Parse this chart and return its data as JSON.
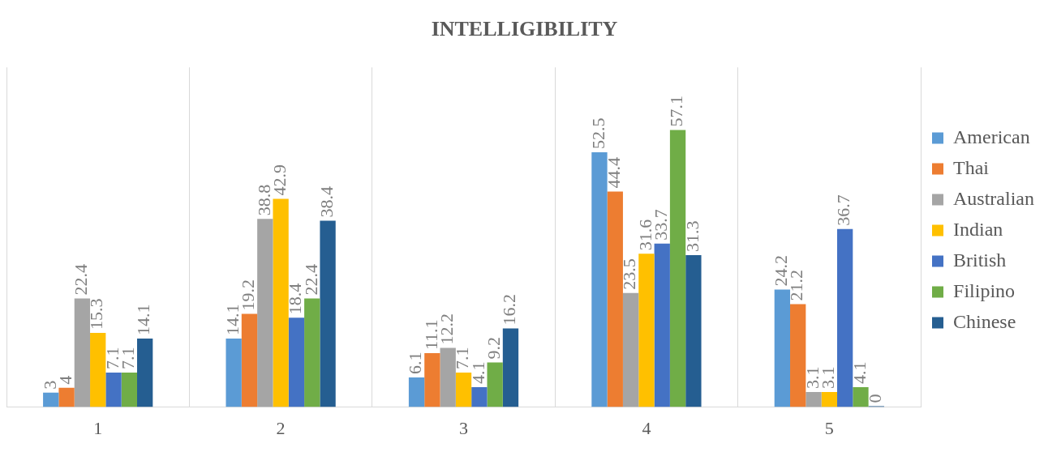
{
  "chart_data": {
    "type": "bar",
    "title": "INTELLIGIBILITY",
    "categories": [
      "1",
      "2",
      "3",
      "4",
      "5"
    ],
    "series": [
      {
        "name": "American",
        "color": "#5b9bd5",
        "values": [
          3,
          14.1,
          6.1,
          52.5,
          24.2
        ]
      },
      {
        "name": "Thai",
        "color": "#ed7d31",
        "values": [
          4,
          19.2,
          11.1,
          44.4,
          21.2
        ]
      },
      {
        "name": "Australian",
        "color": "#a5a5a5",
        "values": [
          22.4,
          38.8,
          12.2,
          23.5,
          3.1
        ]
      },
      {
        "name": "Indian",
        "color": "#ffc000",
        "values": [
          15.3,
          42.9,
          7.1,
          31.6,
          3.1
        ]
      },
      {
        "name": "British",
        "color": "#4472c4",
        "values": [
          7.1,
          18.4,
          4.1,
          33.7,
          36.7
        ]
      },
      {
        "name": "Filipino",
        "color": "#70ad47",
        "values": [
          7.1,
          22.4,
          9.2,
          57.1,
          4.1
        ]
      },
      {
        "name": "Chinese",
        "color": "#255e91",
        "values": [
          14.1,
          38.4,
          16.2,
          31.3,
          0
        ]
      }
    ],
    "data_labels": true,
    "grid": "x",
    "legend": "right"
  }
}
